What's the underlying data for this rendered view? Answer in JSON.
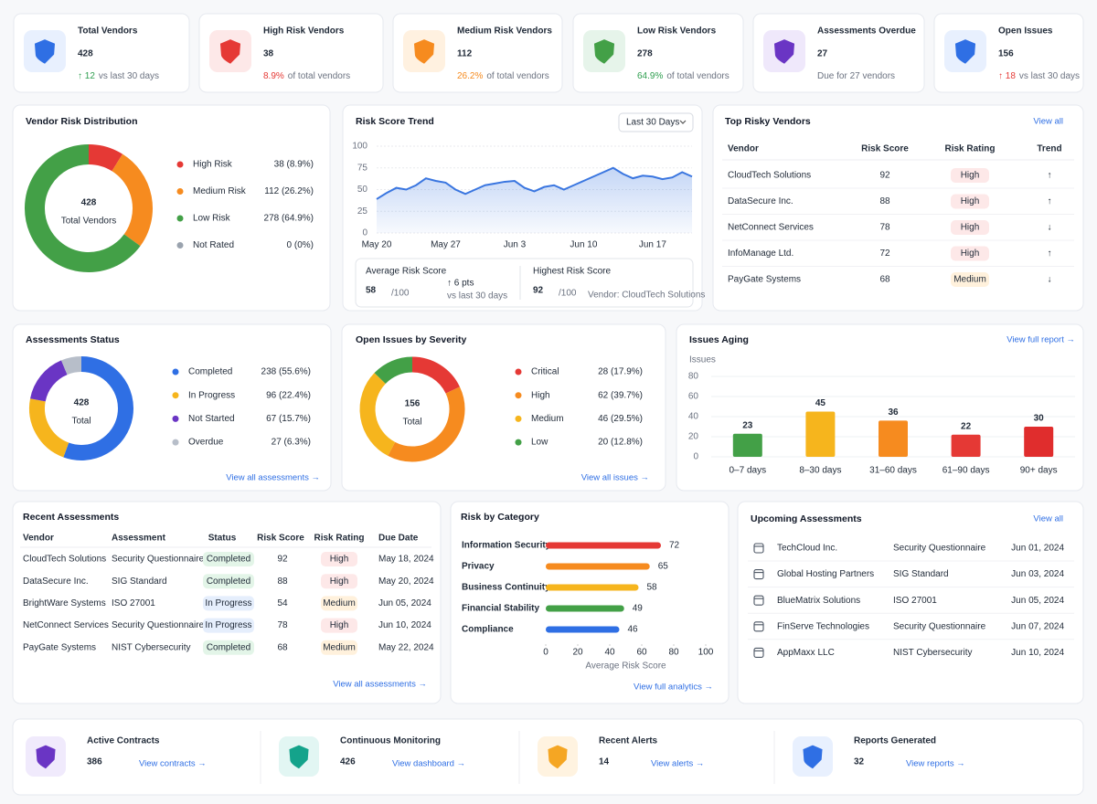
{
  "kpis": [
    {
      "title": "Total Vendors",
      "value": 428,
      "delta": "↑ 12",
      "note": "vs last 30 days"
    },
    {
      "title": "High Risk Vendors",
      "value": 38,
      "delta": "8.9%",
      "note": "of total vendors"
    },
    {
      "title": "Medium Risk Vendors",
      "value": 112,
      "delta": "26.2%",
      "note": "of total vendors"
    },
    {
      "title": "Low Risk Vendors",
      "value": 278,
      "delta": "64.9%",
      "note": "of total vendors"
    },
    {
      "title": "Assessments Overdue",
      "value": 27,
      "note": "Due for 27 vendors"
    },
    {
      "title": "Open Issues",
      "value": 156,
      "delta": "↑ 18",
      "note": "vs last 30 days"
    }
  ],
  "chart_data": [
    {
      "type": "donut",
      "title": "Vendor Risk Distribution",
      "center_value": 428,
      "center_label": "Total Vendors",
      "categories": [
        "High Risk",
        "Medium Risk",
        "Low Risk",
        "Not Rated"
      ],
      "values": [
        38,
        112,
        278,
        0
      ],
      "value_labels": [
        "38 (8.9%)",
        "112 (26.2%)",
        "278 (64.9%)",
        "0 (0%)"
      ],
      "colors": [
        "#e53935",
        "#f68b1f",
        "#43a047",
        "#9aa3ae"
      ]
    },
    {
      "type": "line",
      "title": "Risk Score Trend",
      "filter": "Last 30 Days",
      "categories": [
        "May 20",
        null,
        null,
        null,
        null,
        null,
        null,
        "May 27",
        null,
        null,
        null,
        null,
        null,
        null,
        "Jun 3",
        null,
        null,
        null,
        null,
        null,
        null,
        "Jun 10",
        null,
        null,
        null,
        null,
        null,
        null,
        "Jun 17",
        null,
        null,
        null,
        null
      ],
      "values": [
        39,
        46,
        52,
        50,
        55,
        63,
        60,
        58,
        50,
        45,
        50,
        55,
        57,
        59,
        60,
        52,
        48,
        53,
        55,
        50,
        55,
        60,
        65,
        70,
        75,
        68,
        63,
        66,
        65,
        62,
        64,
        70,
        65
      ],
      "color": "#3a76e0",
      "ylim": [
        0,
        100
      ],
      "yticks": [
        0,
        25,
        50,
        75,
        100
      ],
      "grid": true,
      "stats": [
        {
          "label": "Average Risk Score",
          "value": 58,
          "suffix": "/100",
          "change": "↑ 6 pts",
          "note": "vs last 30 days"
        },
        {
          "label": "Highest Risk Score",
          "value": 92,
          "suffix": "/100",
          "note": "Vendor: CloudTech Solutions"
        }
      ]
    },
    {
      "type": "donut",
      "title": "Assessments Status",
      "center_value": 428,
      "center_label": "Total",
      "categories": [
        "Completed",
        "In Progress",
        "Not Started",
        "Overdue"
      ],
      "values": [
        238,
        96,
        67,
        27
      ],
      "value_labels": [
        "238 (55.6%)",
        "96 (22.4%)",
        "67 (15.7%)",
        "27 (6.3%)"
      ],
      "colors": [
        "#2f6fe4",
        "#f6b51d",
        "#6a35c4",
        "#b7bec9"
      ],
      "link": "View all assessments →"
    },
    {
      "type": "donut",
      "title": "Open Issues by Severity",
      "center_value": 156,
      "center_label": "Total",
      "categories": [
        "Critical",
        "High",
        "Medium",
        "Low"
      ],
      "values": [
        28,
        62,
        46,
        20
      ],
      "value_labels": [
        "28 (17.9%)",
        "62 (39.7%)",
        "46 (29.5%)",
        "20 (12.8%)"
      ],
      "colors": [
        "#e53935",
        "#f68b1f",
        "#f6b51d",
        "#43a047"
      ],
      "link": "View all issues →"
    },
    {
      "type": "bar",
      "title": "Issues Aging",
      "ylabel": "Issues",
      "categories": [
        "0–7 days",
        "8–30 days",
        "31–60 days",
        "61–90 days",
        "90+ days"
      ],
      "values": [
        23,
        45,
        36,
        22,
        30
      ],
      "colors": [
        "#43a047",
        "#f6b51d",
        "#f68b1f",
        "#e53935",
        "#e02d2d"
      ],
      "ylim": [
        0,
        80
      ],
      "yticks": [
        0,
        20,
        40,
        60,
        80
      ],
      "grid": true,
      "link": "View full report →"
    },
    {
      "type": "hbar",
      "title": "Risk by Category",
      "categories": [
        "Information Security",
        "Privacy",
        "Business Continuity",
        "Financial Stability",
        "Compliance"
      ],
      "values": [
        72,
        65,
        58,
        49,
        46
      ],
      "colors": [
        "#e53935",
        "#f68b1f",
        "#f6b51d",
        "#43a047",
        "#2f6fe4"
      ],
      "xlim": [
        0,
        100
      ],
      "xticks": [
        0,
        20,
        40,
        60,
        80,
        100
      ],
      "xlabel": "Average Risk Score",
      "link": "View full analytics →"
    }
  ],
  "top_risky_vendors": {
    "title": "Top Risky Vendors",
    "link": "View all",
    "columns": [
      "Vendor",
      "Risk Score",
      "Risk Rating",
      "Trend"
    ],
    "rows": [
      [
        "CloudTech Solutions",
        92,
        "High",
        "↑"
      ],
      [
        "DataSecure Inc.",
        88,
        "High",
        "↑"
      ],
      [
        "NetConnect Services",
        78,
        "High",
        "↓"
      ],
      [
        "InfoManage Ltd.",
        72,
        "High",
        "↑"
      ],
      [
        "PayGate Systems",
        68,
        "Medium",
        "↓"
      ]
    ]
  },
  "recent_assessments": {
    "title": "Recent Assessments",
    "link": "View all assessments →",
    "columns": [
      "Vendor",
      "Assessment",
      "Status",
      "Risk Score",
      "Risk Rating",
      "Due Date"
    ],
    "rows": [
      [
        "CloudTech Solutions",
        "Security Questionnaire",
        "Completed",
        92,
        "High",
        "May 18, 2024"
      ],
      [
        "DataSecure Inc.",
        "SIG Standard",
        "Completed",
        88,
        "High",
        "May 20, 2024"
      ],
      [
        "BrightWare Systems",
        "ISO 27001",
        "In Progress",
        54,
        "Medium",
        "Jun 05, 2024"
      ],
      [
        "NetConnect Services",
        "Security Questionnaire",
        "In Progress",
        78,
        "High",
        "Jun 10, 2024"
      ],
      [
        "PayGate Systems",
        "NIST Cybersecurity",
        "Completed",
        68,
        "Medium",
        "May 22, 2024"
      ]
    ]
  },
  "upcoming_assessments": {
    "title": "Upcoming Assessments",
    "link": "View all",
    "rows": [
      [
        "TechCloud Inc.",
        "Security Questionnaire",
        "Jun 01, 2024"
      ],
      [
        "Global Hosting Partners",
        "SIG Standard",
        "Jun 03, 2024"
      ],
      [
        "BlueMatrix Solutions",
        "ISO 27001",
        "Jun 05, 2024"
      ],
      [
        "FinServe Technologies",
        "Security Questionnaire",
        "Jun 07, 2024"
      ],
      [
        "AppMaxx LLC",
        "NIST Cybersecurity",
        "Jun 10, 2024"
      ]
    ]
  },
  "summary_cards": [
    {
      "title": "Active Contracts",
      "value": 386,
      "link": "View contracts →"
    },
    {
      "title": "Continuous Monitoring",
      "value": 426,
      "link": "View dashboard →"
    },
    {
      "title": "Recent Alerts",
      "value": 14,
      "link": "View alerts →"
    },
    {
      "title": "Reports Generated",
      "value": 32,
      "link": "View reports →"
    }
  ]
}
